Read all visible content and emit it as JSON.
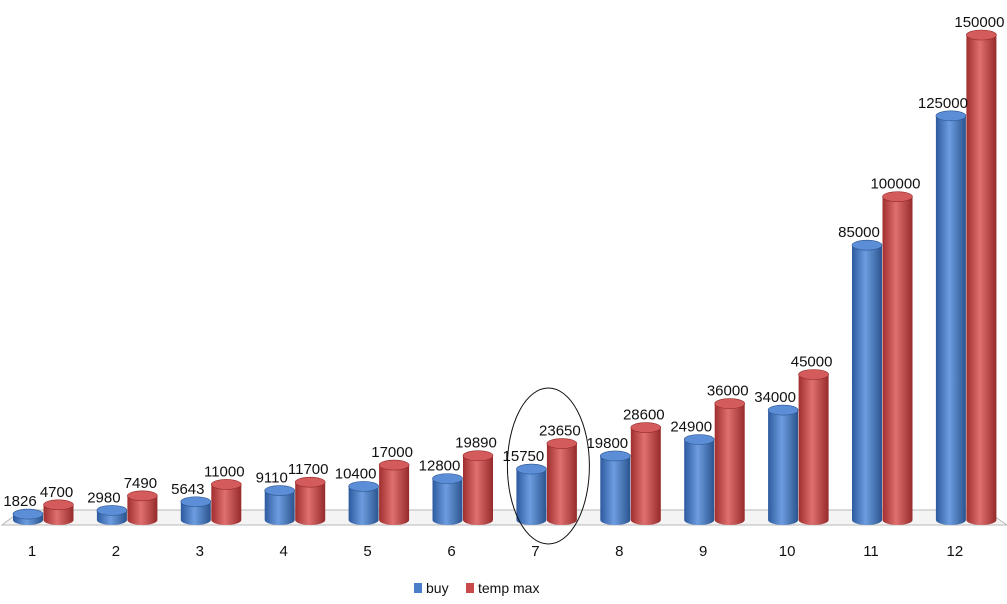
{
  "chart_data": {
    "type": "bar",
    "style": "3d-cylinder",
    "categories": [
      "1",
      "2",
      "3",
      "4",
      "5",
      "6",
      "7",
      "8",
      "9",
      "10",
      "11",
      "12"
    ],
    "series": [
      {
        "name": "buy",
        "color": "#4a7ec9",
        "values": [
          1826,
          2980,
          5643,
          9110,
          10400,
          12800,
          15750,
          19800,
          24900,
          34000,
          85000,
          125000
        ]
      },
      {
        "name": "temp max",
        "color": "#c84a4a",
        "values": [
          4700,
          7490,
          11000,
          11700,
          17000,
          19890,
          23650,
          28600,
          36000,
          45000,
          100000,
          150000
        ]
      }
    ],
    "ylim": [
      0,
      150000
    ],
    "grid": false,
    "legend": "bottom",
    "annotations": [
      {
        "type": "ellipse",
        "category": "7"
      }
    ]
  }
}
